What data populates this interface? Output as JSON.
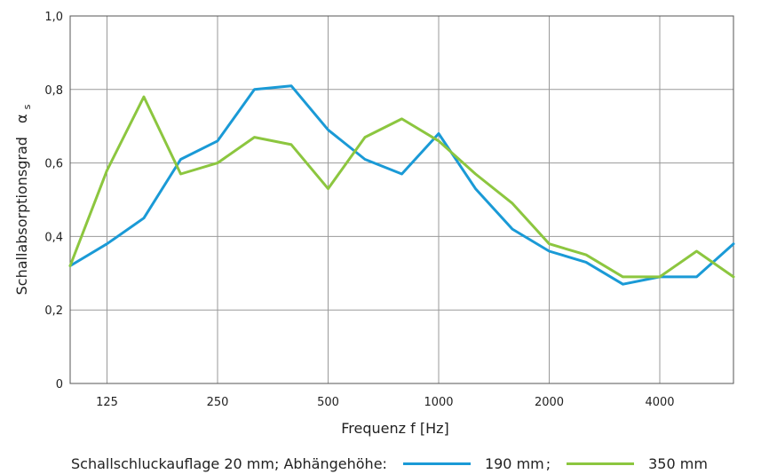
{
  "chart_data": {
    "type": "line",
    "xlabel": "Frequenz f [Hz]",
    "ylabel": "Schallabsorptionsgrad",
    "ylabel_symbol": "α",
    "ylabel_subscript": "s",
    "ylim": [
      0,
      1.0
    ],
    "y_ticks": [
      "0",
      "0,2",
      "0,4",
      "0,6",
      "0,8",
      "1,0"
    ],
    "x_tick_labels": [
      "125",
      "250",
      "500",
      "1000",
      "2000",
      "4000"
    ],
    "x_points": [
      "100",
      "125",
      "160",
      "200",
      "250",
      "315",
      "400",
      "500",
      "630",
      "800",
      "1000",
      "1250",
      "1600",
      "2000",
      "2500",
      "3150",
      "4000",
      "5000",
      "6300"
    ],
    "grid": true,
    "series": [
      {
        "name": "190 mm",
        "color": "#1a9ad6",
        "values": [
          0.32,
          0.38,
          0.45,
          0.61,
          0.66,
          0.8,
          0.81,
          0.69,
          0.61,
          0.57,
          0.68,
          0.53,
          0.42,
          0.36,
          0.33,
          0.27,
          0.29,
          0.29,
          0.38
        ]
      },
      {
        "name": "350 mm",
        "color": "#8cc63f",
        "values": [
          0.32,
          0.58,
          0.78,
          0.57,
          0.6,
          0.67,
          0.65,
          0.53,
          0.67,
          0.72,
          0.66,
          0.57,
          0.49,
          0.38,
          0.35,
          0.29,
          0.29,
          0.36,
          0.29
        ]
      }
    ]
  },
  "legend": {
    "prefix": "Schallschluckauflage 20 mm; Abhängehöhe:",
    "sep": ";"
  }
}
